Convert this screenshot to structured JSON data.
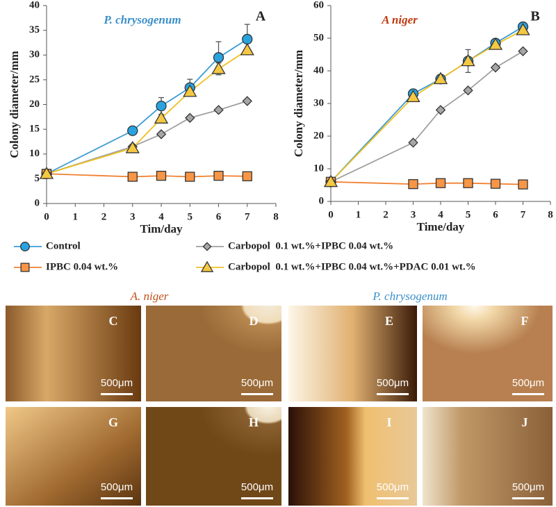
{
  "chart_data": [
    {
      "type": "line",
      "title": "P. chrysogenum",
      "title_color": "#3a8fc8",
      "panel": "A",
      "x_label": "Tim/day",
      "y_label": "Colony diameter/mm",
      "x": [
        0,
        3,
        4,
        5,
        6,
        7
      ],
      "xlim": [
        0,
        8
      ],
      "xticks": [
        0,
        1,
        2,
        3,
        4,
        5,
        6,
        7,
        8
      ],
      "ylim": [
        0,
        40
      ],
      "yticks": [
        0,
        5,
        10,
        15,
        20,
        25,
        30,
        35,
        40
      ],
      "grid": false,
      "series": [
        {
          "name": "Control",
          "color": "#3a9bd5",
          "marker_color": "#29a3e0",
          "marker": "circle",
          "values": [
            6,
            14.7,
            19.7,
            23.4,
            29.5,
            33.2
          ],
          "errors": [
            null,
            null,
            1.7,
            1.7,
            3.2,
            3.0
          ]
        },
        {
          "name": "IPBC 0.04 wt.%",
          "color": "#f08030",
          "marker_color": "#f79646",
          "marker": "square",
          "values": [
            6,
            5.4,
            5.6,
            5.4,
            5.6,
            5.5
          ]
        },
        {
          "name": "Carbopol  0.1 wt.%+IPBC 0.04 wt.%",
          "color": "#a0a0a0",
          "marker_color": "#a6a6a6",
          "marker": "diamond",
          "values": [
            6,
            11.5,
            14,
            17.3,
            18.9,
            20.7
          ]
        },
        {
          "name": "Carbopol  0.1 wt.%+IPBC 0.04 wt.%+PDAC 0.01 wt.%",
          "color": "#f0c020",
          "marker_color": "#f5c842",
          "marker": "triangle",
          "values": [
            6,
            11.2,
            17.2,
            22.6,
            27.2,
            31
          ],
          "errors": [
            null,
            null,
            null,
            null,
            1.2,
            null
          ]
        }
      ]
    },
    {
      "type": "line",
      "title": "A niger",
      "title_color": "#c03a10",
      "panel": "B",
      "x_label": "Time/day",
      "y_label": "Colony diameter/mm",
      "x": [
        0,
        3,
        4,
        5,
        6,
        7
      ],
      "xlim": [
        0,
        8
      ],
      "xticks": [
        0,
        1,
        2,
        3,
        4,
        5,
        6,
        7,
        8
      ],
      "ylim": [
        0,
        60
      ],
      "yticks": [
        0,
        10,
        20,
        30,
        40,
        50,
        60
      ],
      "grid": false,
      "series": [
        {
          "color": "#3a9bd5",
          "marker_color": "#29a3e0",
          "marker": "circle",
          "values": [
            6,
            33,
            37.5,
            43,
            48.5,
            53.5
          ]
        },
        {
          "color": "#f08030",
          "marker_color": "#f79646",
          "marker": "square",
          "values": [
            6,
            5.3,
            5.6,
            5.6,
            5.4,
            5.2
          ]
        },
        {
          "color": "#a0a0a0",
          "marker_color": "#a6a6a6",
          "marker": "diamond",
          "values": [
            6,
            18,
            28,
            34,
            41,
            46
          ]
        },
        {
          "color": "#f0c020",
          "marker_color": "#f5c842",
          "marker": "triangle",
          "values": [
            6,
            32,
            37.5,
            43,
            48,
            52.5
          ],
          "errors": [
            null,
            null,
            null,
            3.5,
            null,
            null
          ]
        }
      ]
    }
  ],
  "micrographs": {
    "headers": [
      {
        "text": "A. niger",
        "color": "#c0501a"
      },
      {
        "text": "P. chrysogenum",
        "color": "#3a8fc8"
      }
    ],
    "panels": [
      {
        "label": "C",
        "scale": "500μm"
      },
      {
        "label": "D",
        "scale": "500μm"
      },
      {
        "label": "E",
        "scale": "500μm"
      },
      {
        "label": "F",
        "scale": "500μm"
      },
      {
        "label": "G",
        "scale": "500μm"
      },
      {
        "label": "H",
        "scale": "500μm"
      },
      {
        "label": "I",
        "scale": "500μm"
      },
      {
        "label": "J",
        "scale": "500μm"
      }
    ]
  }
}
